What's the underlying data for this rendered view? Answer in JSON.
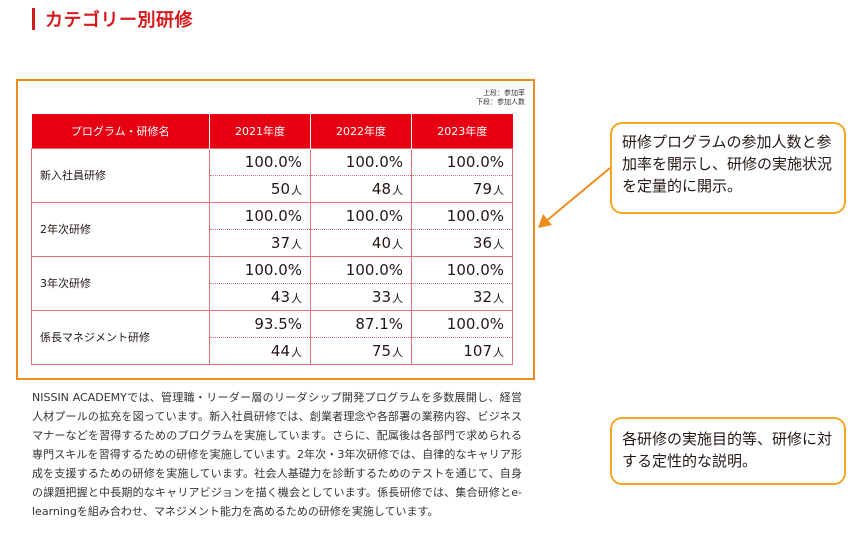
{
  "heading": {
    "title": "カテゴリー別研修"
  },
  "legend_note": {
    "line1": "上段：参加率",
    "line2": "下段：参加人数"
  },
  "table": {
    "headers": [
      "プログラム・研修名",
      "2021年度",
      "2022年度",
      "2023年度"
    ],
    "rows": [
      {
        "name": "新入社員研修",
        "rates": [
          "100.0%",
          "100.0%",
          "100.0%"
        ],
        "counts": [
          "50",
          "48",
          "79"
        ]
      },
      {
        "name": "2年次研修",
        "rates": [
          "100.0%",
          "100.0%",
          "100.0%"
        ],
        "counts": [
          "37",
          "40",
          "36"
        ]
      },
      {
        "name": "3年次研修",
        "rates": [
          "100.0%",
          "100.0%",
          "100.0%"
        ],
        "counts": [
          "43",
          "33",
          "32"
        ]
      },
      {
        "name": "係長マネジメント研修",
        "rates": [
          "93.5%",
          "87.1%",
          "100.0%"
        ],
        "counts": [
          "44",
          "75",
          "107"
        ]
      }
    ],
    "count_unit": "人"
  },
  "callouts": {
    "first": "研修プログラムの参加人数と参加率を開示し、研修の実施状況を定量的に開示。",
    "second": "各研修の実施目的等、研修に対する定性的な説明。"
  },
  "body": {
    "paragraph": "NISSIN ACADEMYでは、管理職・リーダー層のリーダシップ開発プログラムを多数展開し、経営人材プールの拡充を図っています。新入社員研修では、創業者理念や各部署の業務内容、ビジネスマナーなどを習得するためのプログラムを実施しています。さらに、配属後は各部門で求められる専門スキルを習得するための研修を実施しています。2年次・3年次研修では、自律的なキャリア形成を支援するための研修を実施しています。社会人基礎力を診断するためのテストを通じて、自身の課題把握と中長期的なキャリアビジョンを描く機会としています。係長研修では、集合研修とe-learningを組み合わせ、マネジメント能力を高めるための研修を実施しています。"
  },
  "colors": {
    "heading": "#d7191c",
    "table_header": "#e60012",
    "frame": "#f08c1e",
    "callout_border": "#f5a623"
  }
}
